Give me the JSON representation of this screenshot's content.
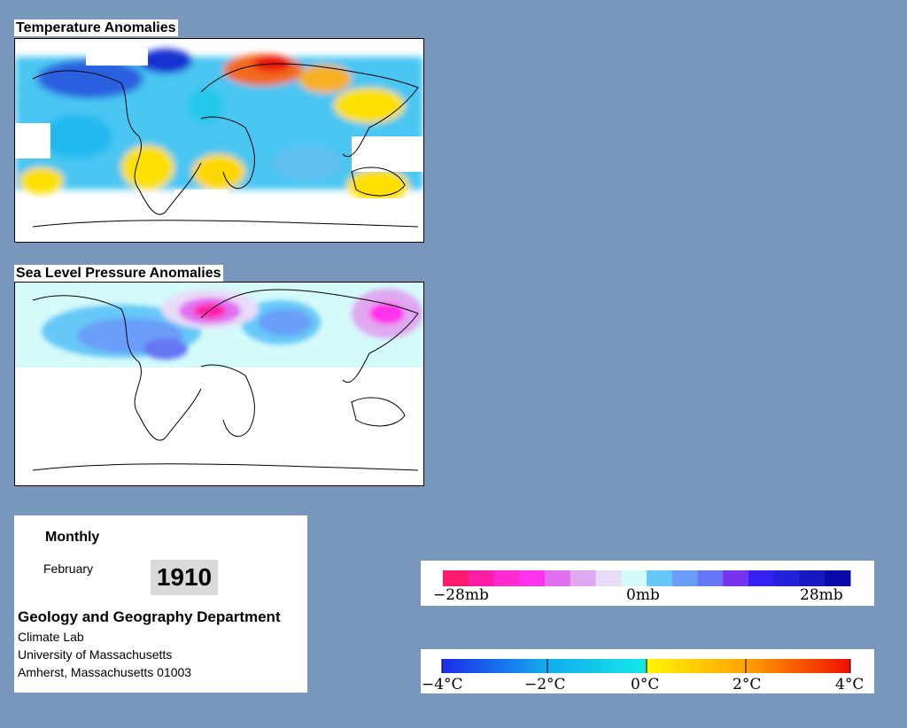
{
  "panels": {
    "temperature": {
      "title": "Temperature Anomalies"
    },
    "pressure": {
      "title": "Sea Level Pressure Anomalies"
    }
  },
  "info": {
    "mode": "Monthly",
    "month": "February",
    "year": "1910",
    "department": "Geology and Geography Department",
    "lines": [
      "Climate Lab",
      "University of Massachusetts",
      "Amherst, Massachusetts 01003"
    ]
  },
  "legends": {
    "pressure": {
      "labels": [
        "−28mb",
        "0mb",
        "28mb"
      ],
      "colors": [
        "#ff1a6e",
        "#ff1fa5",
        "#ff2ad0",
        "#ff33ee",
        "#e070f0",
        "#e0a8f0",
        "#e8dcf8",
        "#d4fafa",
        "#66c8f8",
        "#6a9ef8",
        "#6677f4",
        "#7733f0",
        "#3322f0",
        "#2222d8",
        "#1818c0",
        "#0a0aa8"
      ]
    },
    "temperature": {
      "labels": [
        "−4°C",
        "−2°C",
        "0°C",
        "2°C",
        "4°C"
      ],
      "stops": [
        "#1d2be8",
        "#14a8ee",
        "#14e8e8",
        "#fff600",
        "#ffa000",
        "#f01000"
      ]
    }
  }
}
